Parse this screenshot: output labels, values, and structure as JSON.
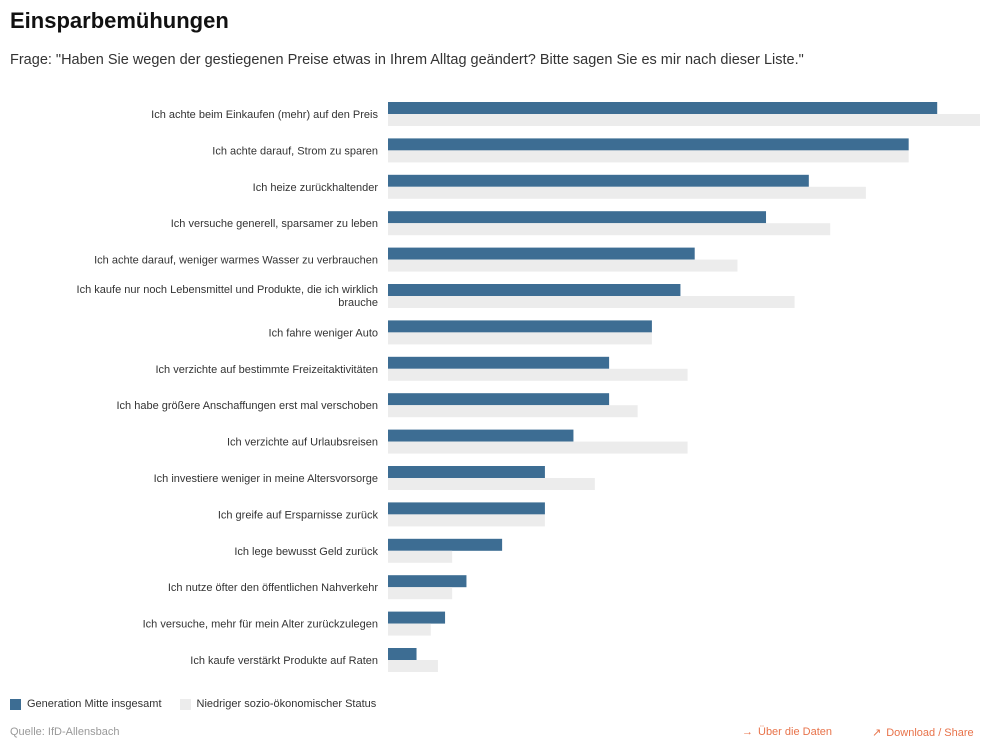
{
  "title": "Einsparbemühungen",
  "subtitle": "Frage: \"Haben Sie wegen der gestiegenen Preise etwas in Ihrem Alltag geändert? Bitte sagen Sie es mir nach dieser Liste.\"",
  "colors": {
    "series1": "#3d6d93",
    "series2": "#ececec",
    "link": "#e8734a"
  },
  "chart_data": {
    "type": "bar",
    "orientation": "horizontal",
    "categories": [
      "Ich achte beim Einkaufen (mehr) auf den Preis",
      "Ich achte darauf, Strom zu sparen",
      "Ich heize zurückhaltender",
      "Ich versuche generell, sparsamer zu leben",
      "Ich achte darauf, weniger warmes Wasser zu verbrauchen",
      "Ich kaufe nur noch Lebensmittel und Produkte, die ich wirklich brauche",
      "Ich fahre weniger Auto",
      "Ich verzichte auf bestimmte Freizeitaktivitäten",
      "Ich habe größere Anschaffungen erst mal verschoben",
      "Ich verzichte auf Urlaubsreisen",
      "Ich investiere weniger in meine Altersvorsorge",
      "Ich greife auf Ersparnisse zurück",
      "Ich lege bewusst Geld zurück",
      "Ich nutze öfter den öffentlichen Nahverkehr",
      "Ich versuche, mehr für mein Alter zurückzulegen",
      "Ich kaufe verstärkt Produkte auf Raten"
    ],
    "series": [
      {
        "name": "Generation Mitte insgesamt",
        "values": [
          77,
          73,
          59,
          53,
          43,
          41,
          37,
          31,
          31,
          26,
          22,
          22,
          16,
          11,
          8,
          4
        ]
      },
      {
        "name": "Niedriger sozio-ökonomischer Status",
        "values": [
          83,
          73,
          67,
          62,
          49,
          57,
          37,
          42,
          35,
          42,
          29,
          22,
          9,
          9,
          6,
          7
        ]
      }
    ],
    "xlim": [
      0,
      83
    ],
    "grid": false,
    "legend_position": "bottom-left"
  },
  "legend": {
    "series1_label": "Generation Mitte insgesamt",
    "series2_label": "Niedriger sozio-ökonomischer Status"
  },
  "footer": {
    "source": "Quelle: IfD-Allensbach",
    "about_label": "Über die Daten",
    "download_label": "Download / Share",
    "about_icon": "arrow-right-icon",
    "download_icon": "arrow-up-right-icon"
  }
}
